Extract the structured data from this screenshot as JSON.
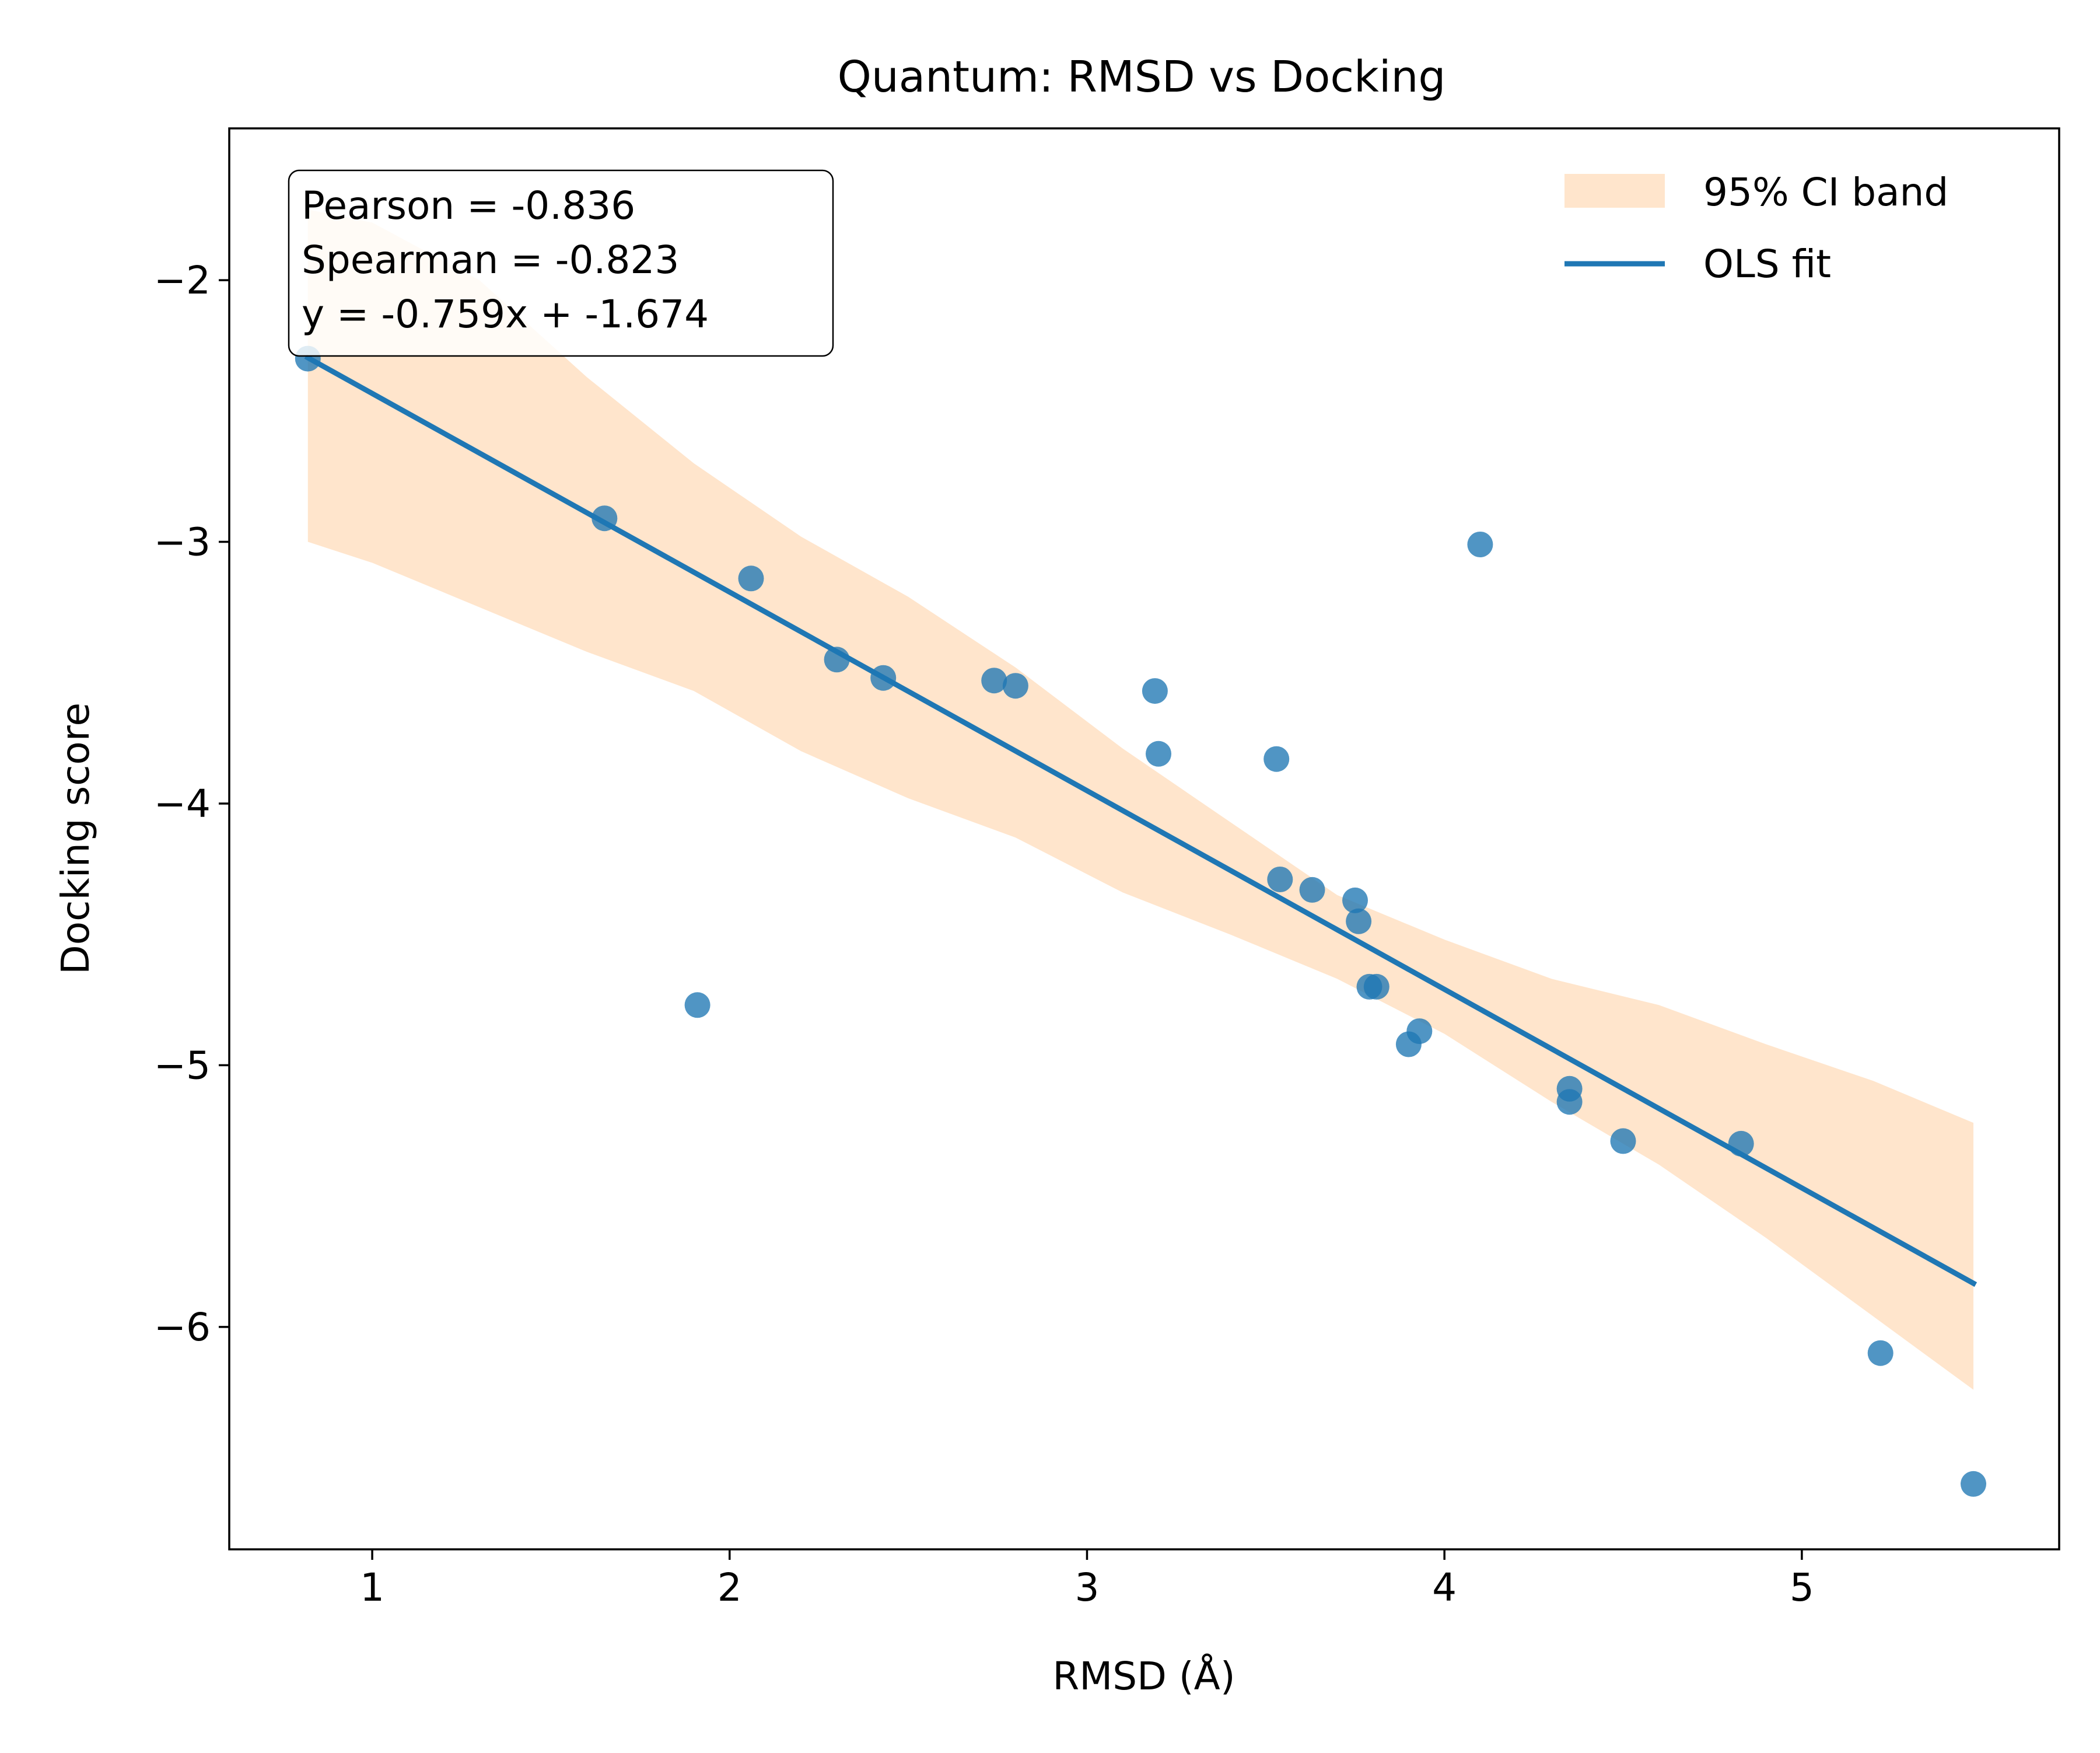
{
  "chart_data": {
    "type": "scatter",
    "title": "Quantum: RMSD vs Docking",
    "xlabel": "RMSD (Å)",
    "ylabel": "Docking score",
    "xlim": [
      0.6,
      5.72
    ],
    "ylim": [
      -6.85,
      -1.42
    ],
    "x_ticks": [
      {
        "value": 1,
        "label": "1"
      },
      {
        "value": 2,
        "label": "2"
      },
      {
        "value": 3,
        "label": "3"
      },
      {
        "value": 4,
        "label": "4"
      },
      {
        "value": 5,
        "label": "5"
      }
    ],
    "y_ticks": [
      {
        "value": -2,
        "label": "−2"
      },
      {
        "value": -3,
        "label": "−3"
      },
      {
        "value": -4,
        "label": "−4"
      },
      {
        "value": -5,
        "label": "−5"
      },
      {
        "value": -6,
        "label": "−6"
      }
    ],
    "grid": false,
    "points": {
      "name": "samples",
      "color": "#1f77b4",
      "x": [
        0.82,
        1.65,
        1.91,
        2.06,
        2.3,
        2.43,
        2.74,
        2.8,
        3.19,
        3.2,
        3.53,
        3.54,
        3.63,
        3.75,
        3.76,
        3.79,
        3.81,
        3.9,
        3.93,
        4.1,
        4.35,
        4.35,
        4.5,
        4.83,
        5.22,
        5.48
      ],
      "y": [
        -2.3,
        -2.91,
        -4.77,
        -3.14,
        -3.45,
        -3.52,
        -3.53,
        -3.55,
        -3.57,
        -3.81,
        -3.83,
        -4.29,
        -4.33,
        -4.37,
        -4.45,
        -4.7,
        -4.7,
        -4.92,
        -4.87,
        -3.01,
        -5.09,
        -5.14,
        -5.29,
        -5.3,
        -6.1,
        -6.6
      ]
    },
    "fit": {
      "name": "OLS fit",
      "color": "#1f77b4",
      "slope": -0.759,
      "intercept": -1.674,
      "x_range": [
        0.82,
        5.48
      ]
    },
    "ci_band": {
      "name": "95% CI band",
      "color": "#ffe5cc",
      "x": [
        0.82,
        1.0,
        1.3,
        1.6,
        1.9,
        2.2,
        2.5,
        2.8,
        3.1,
        3.4,
        3.7,
        4.0,
        4.3,
        4.6,
        4.9,
        5.2,
        5.48
      ],
      "upper": [
        -1.73,
        -1.78,
        -2.0,
        -2.37,
        -2.7,
        -2.98,
        -3.21,
        -3.48,
        -3.79,
        -4.07,
        -4.35,
        -4.52,
        -4.67,
        -4.77,
        -4.92,
        -5.06,
        -5.22
      ],
      "lower": [
        -3.0,
        -3.08,
        -3.25,
        -3.42,
        -3.57,
        -3.8,
        -3.98,
        -4.13,
        -4.34,
        -4.5,
        -4.67,
        -4.88,
        -5.14,
        -5.38,
        -5.66,
        -5.96,
        -6.24
      ]
    },
    "legend": {
      "position": "upper right",
      "entries": [
        {
          "label": "95% CI band",
          "kind": "patch"
        },
        {
          "label": "OLS fit",
          "kind": "line"
        }
      ]
    },
    "annotation": {
      "position": "upper left",
      "lines": [
        "Pearson = -0.836",
        "Spearman = -0.823",
        "y = -0.759x + -1.674"
      ]
    }
  }
}
